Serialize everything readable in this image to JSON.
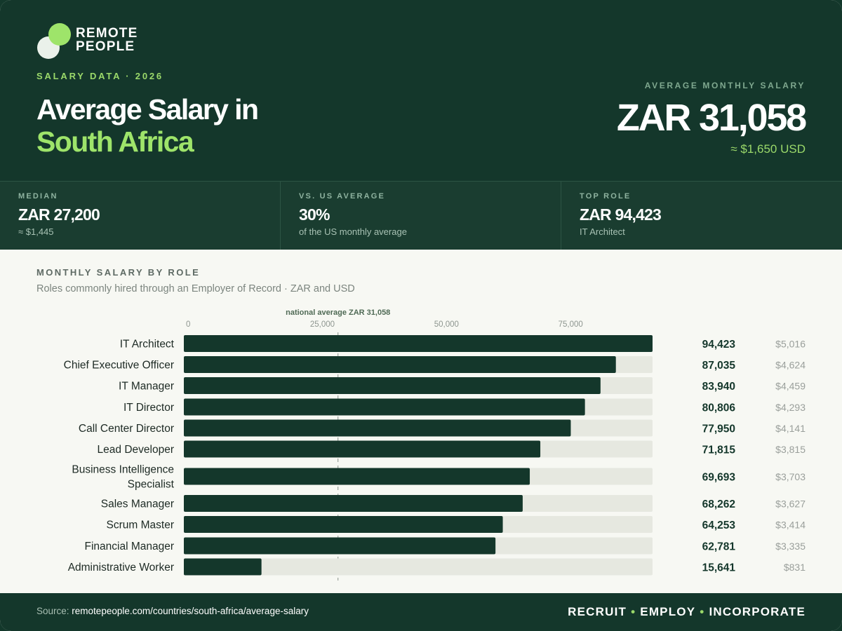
{
  "brand": {
    "line1": "REMOTE",
    "line2": "PEOPLE"
  },
  "header": {
    "eyebrow": "SALARY DATA · 2026",
    "title_line1": "Average Salary in",
    "title_line2": "South Africa",
    "avg_label": "AVERAGE MONTHLY SALARY",
    "avg_value": "ZAR 31,058",
    "avg_usd": "≈ $1,650 USD"
  },
  "stats": [
    {
      "label": "MEDIAN",
      "value": "ZAR 27,200",
      "sub": "≈ $1,445"
    },
    {
      "label": "VS. US AVERAGE",
      "value": "30%",
      "sub": "of the US monthly average"
    },
    {
      "label": "TOP ROLE",
      "value": "ZAR 94,423",
      "sub": "IT Architect"
    }
  ],
  "section": {
    "title": "MONTHLY SALARY BY ROLE",
    "subtitle": "Roles commonly hired through an Employer of Record · ZAR and USD"
  },
  "chart_data": {
    "type": "bar",
    "orientation": "horizontal",
    "xlim": [
      0,
      94423
    ],
    "xticks": [
      0,
      25000,
      50000,
      75000
    ],
    "xtick_labels": [
      "0",
      "25,000",
      "50,000",
      "75,000"
    ],
    "reference": {
      "value": 31058,
      "label": "national average ZAR 31,058"
    },
    "categories": [
      "IT Architect",
      "Chief Executive Officer",
      "IT Manager",
      "IT Director",
      "Call Center Director",
      "Lead Developer",
      "Business Intelligence Specialist",
      "Sales Manager",
      "Scrum Master",
      "Financial Manager",
      "Administrative Worker"
    ],
    "series": [
      {
        "values": [
          94423,
          87035,
          83940,
          80806,
          77950,
          71815,
          69693,
          68262,
          64253,
          62781,
          15641
        ]
      }
    ],
    "value_labels": [
      "94,423",
      "87,035",
      "83,940",
      "80,806",
      "77,950",
      "71,815",
      "69,693",
      "68,262",
      "64,253",
      "62,781",
      "15,641"
    ],
    "usd_labels": [
      "$5,016",
      "$4,624",
      "$4,459",
      "$4,293",
      "$4,141",
      "$3,815",
      "$3,703",
      "$3,627",
      "$3,414",
      "$3,335",
      "$831"
    ],
    "colors": {
      "bar": "#14372b",
      "track": "#e6e8e0",
      "reference": "#8a938c"
    }
  },
  "footer": {
    "source_label": "Source:",
    "source_url": "remotepeople.com/countries/south-africa/average-salary",
    "tag1": "RECRUIT",
    "tag2": "EMPLOY",
    "tag3": "INCORPORATE",
    "sep": "•"
  }
}
